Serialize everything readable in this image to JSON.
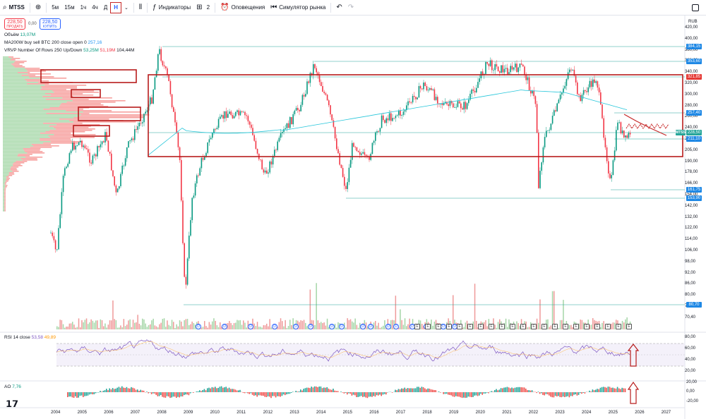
{
  "toolbar": {
    "symbol": "MTSS",
    "intervals": [
      "5м",
      "15м",
      "1ч",
      "4ч",
      "Д",
      "Н"
    ],
    "active_interval": "Н",
    "indicators_label": "Индикаторы",
    "layout_count": "2",
    "alerts_label": "Оповещения",
    "replay_label": "Симулятор рынка"
  },
  "trade": {
    "sell_price": "228,50",
    "sell_label": "ПРОДАТЬ",
    "spread": "0,00",
    "buy_price": "228,50",
    "buy_label": "КУПИТЬ"
  },
  "legends": {
    "volume": "Объём",
    "volume_value": "13,07M",
    "ma_label": "MA200W buy sell BTC 200 close open 0",
    "ma_value": "257,16",
    "vrvp_label": "VRVP Number Of Rows 250 Up/Down",
    "vrvp_up": "53,25M",
    "vrvp_down": "51,19M",
    "vrvp_total": "104,44M",
    "rsi_label": "RSI 14 close",
    "rsi_value": "53,58",
    "rsi_ma": "49,89",
    "ao_label": "AO",
    "ao_value": "7,76"
  },
  "price_axis": {
    "currency": "RUB",
    "ticks": [
      "420,00",
      "400,00",
      "380,00",
      "360,00",
      "340,00",
      "320,00",
      "300,00",
      "280,00",
      "260,00",
      "240,00",
      "220,00",
      "205,00",
      "190,00",
      "178,00",
      "166,00",
      "154,00",
      "142,00",
      "132,00",
      "122,00",
      "114,00",
      "106,00",
      "98,00",
      "92,00",
      "86,00",
      "80,00",
      "76,00",
      "70,40"
    ],
    "level_tags": [
      "384,15",
      "353,60",
      "321,85",
      "257,40",
      "228,50",
      "211,10",
      "161,75",
      "153,90",
      "80,70"
    ]
  },
  "rsi_axis": [
    "80,00",
    "60,00",
    "40,00",
    "20,00"
  ],
  "ao_axis": [
    "20,00",
    "0,00",
    "-20,00"
  ],
  "years": [
    "2004",
    "2005",
    "2006",
    "2007",
    "2008",
    "2009",
    "2010",
    "2011",
    "2012",
    "2013",
    "2014",
    "2015",
    "2016",
    "2017",
    "2018",
    "2019",
    "2020",
    "2021",
    "2022",
    "2023",
    "2024",
    "2025",
    "2026",
    "2027"
  ],
  "event_markers": [
    "D",
    "D",
    "D",
    "D",
    "D",
    "D",
    "D",
    "D",
    "D",
    "D",
    "D",
    "D",
    "D",
    "D",
    "D",
    "D",
    "E",
    "E",
    "E",
    "E",
    "E",
    "E",
    "E",
    "E",
    "E",
    "E",
    "E",
    "E",
    "E",
    "E",
    "E",
    "E",
    "E",
    "E",
    "E",
    "E",
    "E"
  ],
  "colors": {
    "up": "#089981",
    "down": "#f23645",
    "annotation": "#b71c1c",
    "levels": "#26a69a",
    "rsi": "#7e57c2",
    "ma": "#26c6da"
  },
  "price_series": {
    "note_hidden": ""
  }
}
